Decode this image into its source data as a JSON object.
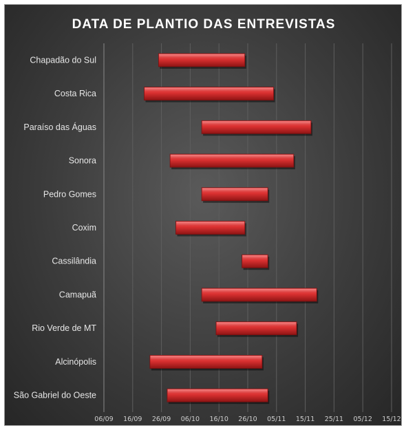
{
  "chart_data": {
    "type": "bar",
    "subtype": "floating-horizontal",
    "title": "DATA DE PLANTIO DAS ENTREVISTAS",
    "xlabel": "",
    "ylabel": "",
    "categories": [
      "Chapadão do Sul",
      "Costa Rica",
      "Paraíso das Águas",
      "Sonora",
      "Pedro Gomes",
      "Coxim",
      "Cassilândia",
      "Camapuã",
      "Rio Verde de MT",
      "Alcinópolis",
      "São Gabriel do Oeste"
    ],
    "x_ticks": [
      "06/09",
      "16/09",
      "26/09",
      "06/10",
      "16/10",
      "26/10",
      "05/11",
      "15/11",
      "25/11",
      "05/12",
      "15/12"
    ],
    "x_range": [
      "06/09",
      "15/12"
    ],
    "series": [
      {
        "start": [
          "25/09",
          "20/09",
          "10/10",
          "29/09",
          "10/10",
          "01/10",
          "24/10",
          "10/10",
          "15/10",
          "22/09",
          "28/09"
        ],
        "end": [
          "25/10",
          "04/11",
          "17/11",
          "11/11",
          "02/11",
          "25/10",
          "02/11",
          "19/11",
          "12/11",
          "31/10",
          "02/11"
        ]
      }
    ],
    "grid": true,
    "legend": "none",
    "colors": {
      "bar": "#d93030",
      "bar_dark": "#8e1414",
      "background": "#3a3a3a",
      "grid": "#5e5e5e",
      "text": "#e6e6e6"
    }
  }
}
